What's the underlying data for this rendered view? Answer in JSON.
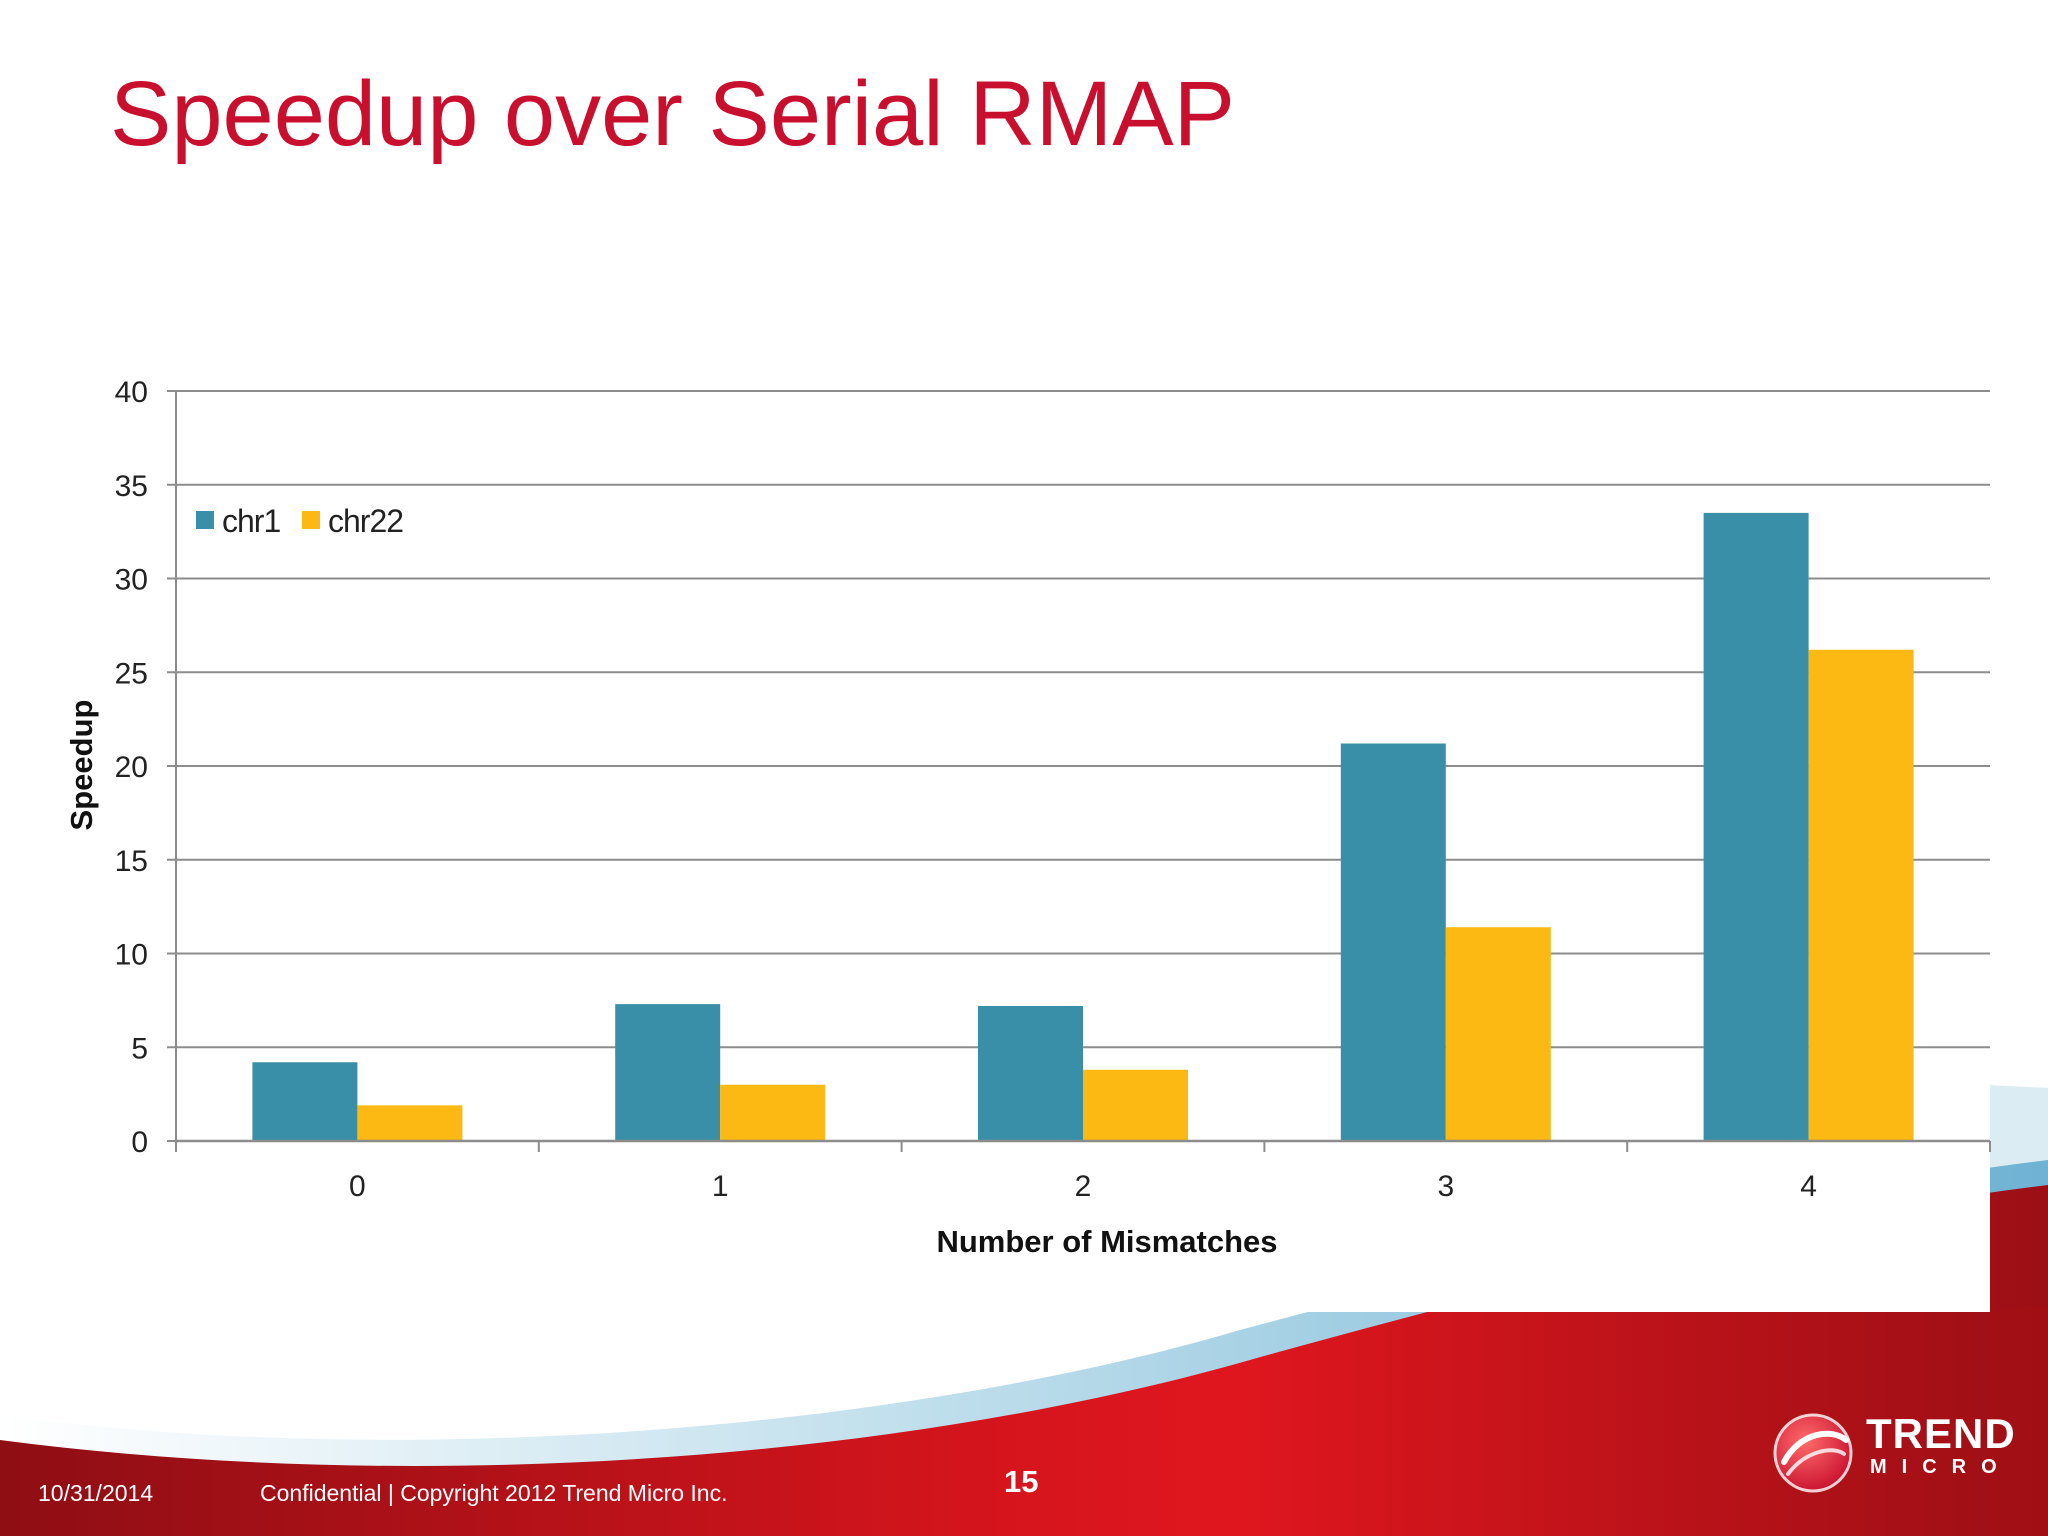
{
  "slide": {
    "title": "Speedup over Serial RMAP"
  },
  "footer": {
    "date": "10/31/2014",
    "copyright": "Confidential | Copyright 2012 Trend Micro Inc.",
    "page_number": "15"
  },
  "logo": {
    "icon": "trend-micro-ball-icon",
    "word_1": "TREND",
    "word_2": "MICRO"
  },
  "colors": {
    "title": "#c8102e",
    "chr1": "#3a8fa8",
    "chr22": "#fdb913",
    "footer_red": "#b5121b"
  },
  "chart_data": {
    "type": "bar",
    "categories": [
      "0",
      "1",
      "2",
      "3",
      "4"
    ],
    "series": [
      {
        "name": "chr1",
        "values": [
          4.2,
          7.3,
          7.2,
          21.2,
          33.5
        ]
      },
      {
        "name": "chr22",
        "values": [
          1.9,
          3.0,
          3.8,
          11.4,
          26.2
        ]
      }
    ],
    "xlabel": "Number of Mismatches",
    "ylabel": "Speedup",
    "ylim": [
      0,
      40
    ],
    "yticks": [
      "0",
      "5",
      "10",
      "15",
      "20",
      "25",
      "30",
      "35",
      "40"
    ],
    "grid": true,
    "legend": "top-left"
  }
}
